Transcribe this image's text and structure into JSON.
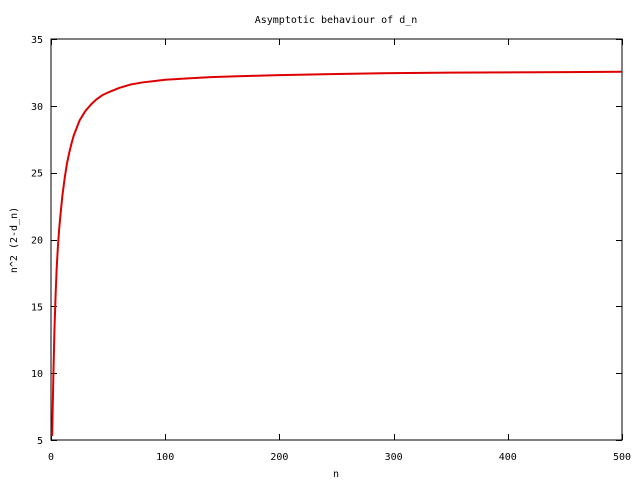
{
  "chart_data": {
    "type": "line",
    "title": "Asymptotic behaviour of d_n",
    "xlabel": "n",
    "ylabel": "n^2 (2-d_n)",
    "xlim": [
      0,
      500
    ],
    "ylim": [
      5,
      35
    ],
    "x_ticks": [
      0,
      100,
      200,
      300,
      400,
      500
    ],
    "y_ticks": [
      5,
      10,
      15,
      20,
      25,
      30,
      35
    ],
    "grid": false,
    "legend": "none",
    "line_color": "#dd0000",
    "series": [
      {
        "x": [
          1,
          2,
          3,
          4,
          5,
          6,
          7,
          8,
          10,
          12,
          14,
          16,
          18,
          20,
          25,
          30,
          35,
          40,
          45,
          50,
          60,
          70,
          80,
          90,
          100,
          120,
          140,
          160,
          180,
          200,
          250,
          300,
          350,
          400,
          450,
          500
        ],
        "y": [
          5.3,
          9.5,
          13.2,
          15.8,
          17.9,
          19.4,
          20.6,
          21.6,
          23.3,
          24.6,
          25.7,
          26.5,
          27.2,
          27.8,
          28.9,
          29.6,
          30.1,
          30.5,
          30.8,
          31.0,
          31.35,
          31.6,
          31.75,
          31.85,
          31.95,
          32.05,
          32.15,
          32.2,
          32.25,
          32.3,
          32.38,
          32.45,
          32.48,
          32.5,
          32.52,
          32.55
        ]
      }
    ]
  }
}
